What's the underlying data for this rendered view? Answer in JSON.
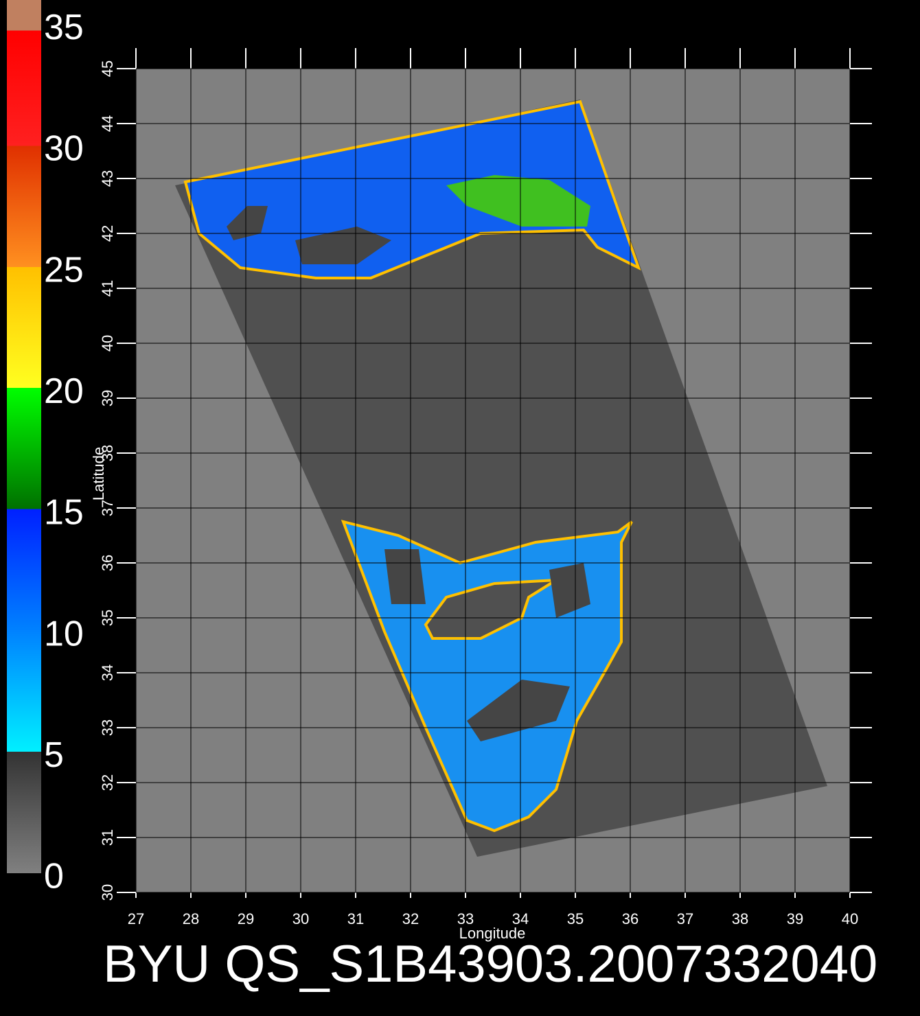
{
  "map": {
    "title": "BYU QS_S1B43903.2007332040",
    "xlabel": "Longitude",
    "ylabel": "Latitude",
    "xlim": [
      27,
      40
    ],
    "ylim": [
      30,
      45
    ],
    "xticks": [
      27,
      28,
      29,
      30,
      31,
      32,
      33,
      34,
      35,
      36,
      37,
      38,
      39,
      40
    ],
    "yticks": [
      30,
      31,
      32,
      33,
      34,
      35,
      36,
      37,
      38,
      39,
      40,
      41,
      42,
      43,
      44,
      45
    ],
    "grid": true,
    "colorbar": {
      "clim": [
        0,
        36
      ],
      "ticks": [
        0,
        5,
        10,
        15,
        20,
        25,
        30,
        35
      ]
    }
  }
}
